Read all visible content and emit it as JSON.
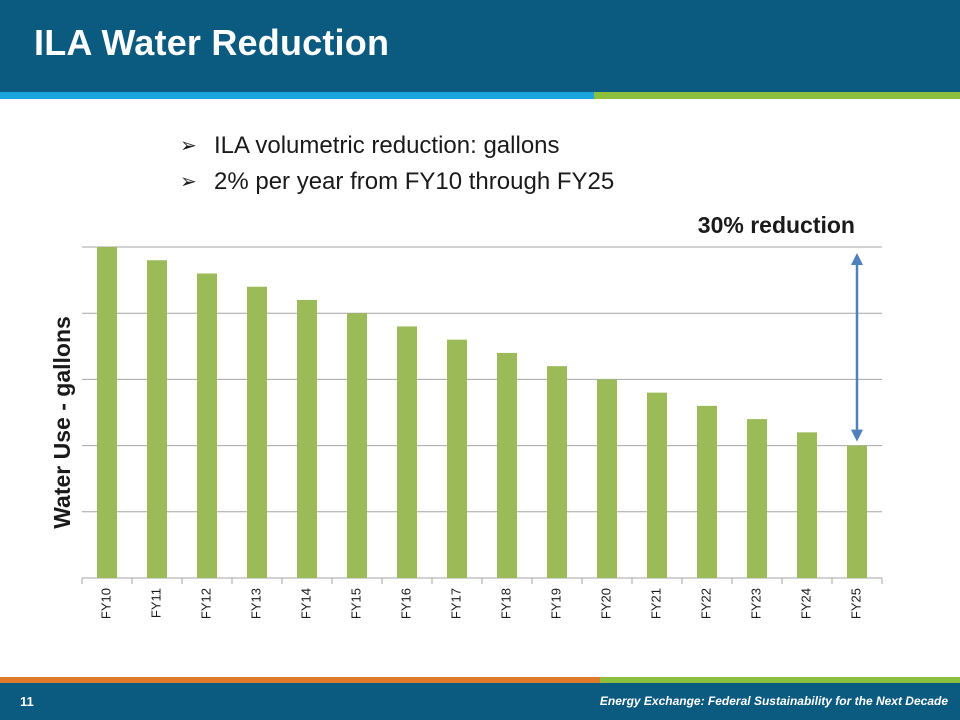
{
  "slide": {
    "title": "ILA Water Reduction",
    "bullets": [
      "ILA volumetric reduction: gallons",
      "2% per year from FY10 through FY25"
    ],
    "bullet_icon": "arrow-bullet-icon"
  },
  "footer": {
    "page_number": "11",
    "text": "Energy Exchange: Federal Sustainability for the Next Decade"
  },
  "colors": {
    "header_bg": "#0b5a80",
    "bar": "#9bbb59",
    "arrow": "#4f81bd",
    "gridline": "#a6a6a6"
  },
  "chart_data": {
    "type": "bar",
    "ylabel": "Water Use - gallons",
    "xlabel": "",
    "categories": [
      "FY10",
      "FY11",
      "FY12",
      "FY13",
      "FY14",
      "FY15",
      "FY16",
      "FY17",
      "FY18",
      "FY19",
      "FY20",
      "FY21",
      "FY22",
      "FY23",
      "FY24",
      "FY25"
    ],
    "values": [
      100,
      98,
      96,
      94,
      92,
      90,
      88,
      86,
      84,
      82,
      80,
      78,
      76,
      74,
      72,
      70
    ],
    "ylim": [
      50,
      100
    ],
    "grid": true,
    "y_tick_labels_shown": false,
    "annotation": {
      "text": "30% reduction",
      "arrow_between": [
        "FY25",
        100
      ]
    }
  }
}
